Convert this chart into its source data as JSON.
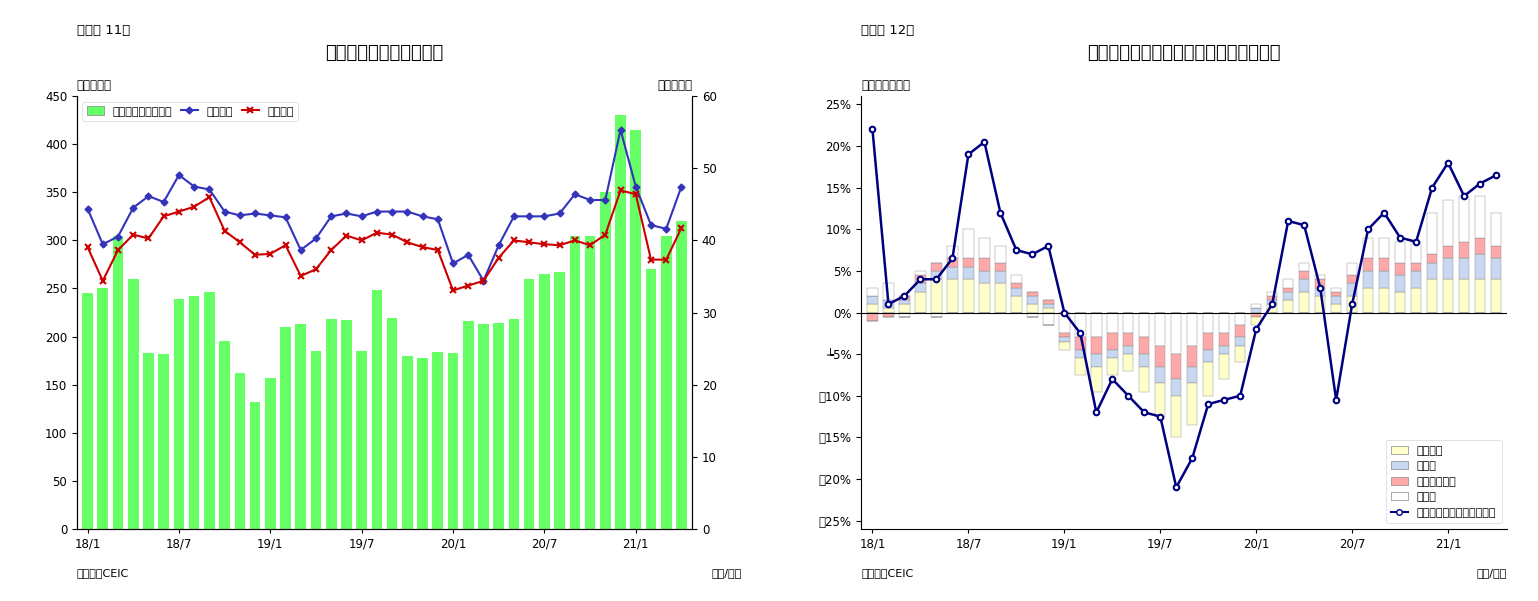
{
  "fig11": {
    "title": "シンガポール　貿易収支",
    "subtitle": "（図表 11）",
    "ylabel_left": "（億ドル）",
    "ylabel_right": "（億ドル）",
    "xlabel": "（年/月）",
    "source": "（資料）CEIC",
    "ylim_left": [
      0,
      450
    ],
    "ylim_right": [
      0,
      60
    ],
    "yticks_left": [
      0,
      50,
      100,
      150,
      200,
      250,
      300,
      350,
      400,
      450
    ],
    "yticks_right": [
      0,
      10,
      20,
      30,
      40,
      50,
      60
    ],
    "xtick_labels": [
      "18/1",
      "18/7",
      "19/1",
      "19/7",
      "20/1",
      "20/7",
      "21/1"
    ],
    "bar_color": "#66FF66",
    "line_export_color": "#3333BB",
    "line_import_color": "#CC0000",
    "legend_labels": [
      "貿易収支（右目盛）",
      "総輸出額",
      "総輸入額"
    ],
    "trade_balance": [
      245,
      250,
      305,
      260,
      183,
      182,
      239,
      242,
      246,
      195,
      162,
      132,
      157,
      210,
      213,
      185,
      218,
      217,
      185,
      248,
      219,
      180,
      178,
      184,
      183,
      216,
      213,
      214,
      218,
      260,
      265,
      267,
      305,
      305,
      350,
      430,
      415,
      270,
      305,
      320
    ],
    "exports": [
      333,
      296,
      304,
      334,
      346,
      340,
      368,
      356,
      353,
      330,
      326,
      328,
      326,
      324,
      290,
      302,
      325,
      328,
      325,
      330,
      330,
      330,
      325,
      322,
      276,
      285,
      258,
      295,
      325,
      325,
      325,
      328,
      348,
      342,
      342,
      415,
      356,
      316,
      312,
      356
    ],
    "imports": [
      293,
      258,
      290,
      306,
      302,
      325,
      330,
      335,
      345,
      310,
      298,
      285,
      286,
      295,
      263,
      270,
      290,
      305,
      300,
      308,
      306,
      298,
      293,
      290,
      248,
      253,
      258,
      282,
      300,
      298,
      296,
      295,
      300,
      295,
      306,
      352,
      348,
      280,
      280,
      313
    ]
  },
  "fig12": {
    "title": "シンガポール　輸出の伸び率（品目別）",
    "subtitle": "（図表 12）",
    "ylabel_left": "（前年同期比）",
    "xlabel": "（年/月）",
    "source": "（資料）CEIC",
    "ylim": [
      -0.26,
      0.26
    ],
    "yticks": [
      0.25,
      0.2,
      0.15,
      0.1,
      0.05,
      0.0,
      -0.05,
      -0.1,
      -0.15,
      -0.2,
      -0.25
    ],
    "ytick_labels": [
      "25%",
      "20%",
      "15%",
      "10%",
      "5%",
      "0%",
      "┶5%",
      "⍤10%",
      "⍤15%",
      "⍤20%",
      "⍤25%"
    ],
    "xtick_labels": [
      "18/1",
      "18/7",
      "19/1",
      "19/7",
      "20/1",
      "20/7",
      "21/1"
    ],
    "colors": {
      "electronics": "#FFFFCC",
      "pharma": "#C8D8F0",
      "petrochem": "#FFAAAA",
      "other": "#FFFFFF",
      "line": "#000080"
    },
    "legend_labels": [
      "電子製品",
      "医薬品",
      "石油化学製品",
      "その他",
      "非石油輸出（再輸出除く）"
    ],
    "months": [
      1,
      2,
      3,
      4,
      5,
      6,
      7,
      8,
      9,
      10,
      11,
      12,
      13,
      14,
      15,
      16,
      17,
      18,
      19,
      20,
      21,
      22,
      23,
      24,
      25,
      26,
      27,
      28,
      29,
      30,
      31,
      32,
      33,
      34,
      35,
      36,
      37,
      38,
      39,
      40
    ],
    "electronics": [
      0.01,
      0.005,
      0.01,
      0.025,
      0.04,
      0.04,
      0.04,
      0.035,
      0.035,
      0.02,
      0.01,
      0.005,
      -0.01,
      -0.02,
      -0.03,
      -0.02,
      -0.02,
      -0.03,
      -0.04,
      -0.05,
      -0.05,
      -0.04,
      -0.03,
      -0.02,
      -0.01,
      0.01,
      0.015,
      0.025,
      0.02,
      0.01,
      0.02,
      0.03,
      0.03,
      0.025,
      0.03,
      0.04,
      0.04,
      0.04,
      0.04,
      0.04
    ],
    "pharma": [
      0.01,
      0.01,
      0.005,
      0.01,
      0.01,
      0.015,
      0.015,
      0.015,
      0.015,
      0.01,
      0.01,
      0.005,
      -0.005,
      -0.01,
      -0.015,
      -0.01,
      -0.01,
      -0.015,
      -0.02,
      -0.02,
      -0.02,
      -0.015,
      -0.01,
      -0.01,
      0.005,
      0.005,
      0.01,
      0.015,
      0.01,
      0.01,
      0.015,
      0.02,
      0.02,
      0.02,
      0.02,
      0.02,
      0.025,
      0.025,
      0.03,
      0.025
    ],
    "petrochem": [
      -0.01,
      -0.005,
      0.005,
      0.01,
      0.01,
      0.01,
      0.01,
      0.015,
      0.01,
      0.005,
      0.005,
      0.005,
      -0.005,
      -0.015,
      -0.02,
      -0.02,
      -0.015,
      -0.02,
      -0.025,
      -0.03,
      -0.025,
      -0.02,
      -0.015,
      -0.015,
      -0.005,
      0.005,
      0.005,
      0.01,
      0.01,
      0.005,
      0.01,
      0.015,
      0.015,
      0.015,
      0.01,
      0.01,
      0.015,
      0.02,
      0.02,
      0.015
    ],
    "other": [
      0.01,
      0.02,
      -0.005,
      0.005,
      -0.005,
      0.015,
      0.035,
      0.025,
      0.02,
      0.01,
      -0.005,
      -0.015,
      -0.025,
      -0.03,
      -0.03,
      -0.025,
      -0.025,
      -0.03,
      -0.04,
      -0.05,
      -0.04,
      -0.025,
      -0.025,
      -0.015,
      0.005,
      0.005,
      0.01,
      0.01,
      0.005,
      0.005,
      0.015,
      0.025,
      0.025,
      0.025,
      0.025,
      0.05,
      0.055,
      0.055,
      0.05,
      0.04
    ],
    "non_oil": [
      0.22,
      0.01,
      0.02,
      0.04,
      0.04,
      0.065,
      0.19,
      0.205,
      0.12,
      0.075,
      0.07,
      0.08,
      0.0,
      -0.025,
      -0.12,
      -0.08,
      -0.1,
      -0.12,
      -0.125,
      -0.21,
      -0.175,
      -0.11,
      -0.105,
      -0.1,
      -0.02,
      0.01,
      0.11,
      0.105,
      0.03,
      -0.105,
      0.01,
      0.1,
      0.12,
      0.09,
      0.085,
      0.15,
      0.18,
      0.14,
      0.155,
      0.165
    ]
  }
}
